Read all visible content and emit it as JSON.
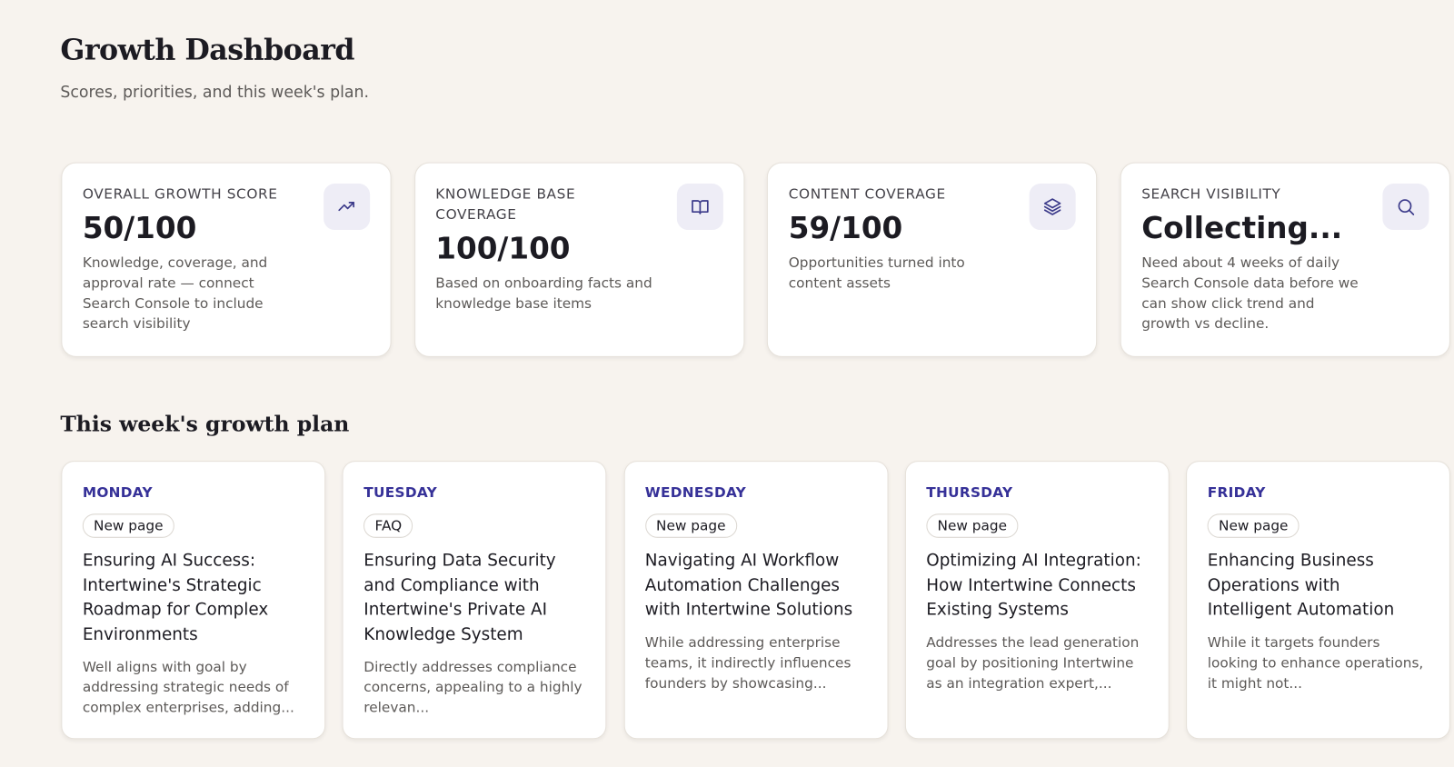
{
  "header": {
    "title": "Growth Dashboard",
    "subtitle": "Scores, priorities, and this week's plan."
  },
  "score_cards": [
    {
      "label": "OVERALL GROWTH SCORE",
      "value": "50/100",
      "description": "Knowledge, coverage, and approval rate — connect Search Console to include search visibility"
    },
    {
      "label": "KNOWLEDGE BASE COVERAGE",
      "value": "100/100",
      "description": "Based on onboarding facts and knowledge base items"
    },
    {
      "label": "CONTENT COVERAGE",
      "value": "59/100",
      "description": "Opportunities turned into content assets"
    },
    {
      "label": "SEARCH VISIBILITY",
      "value": "Collecting...",
      "description": "Need about 4 weeks of daily Search Console data before we can show click trend and growth vs decline."
    }
  ],
  "plan": {
    "title": "This week's growth plan",
    "days": [
      {
        "day": "MONDAY",
        "tag": "New page",
        "title": "Ensuring AI Success: Intertwine's Strategic Roadmap for Complex Environments",
        "description": "Well aligns with goal by addressing strategic needs of complex enterprises, adding..."
      },
      {
        "day": "TUESDAY",
        "tag": "FAQ",
        "title": "Ensuring Data Security and Compliance with Intertwine's Private AI Knowledge System",
        "description": "Directly addresses compliance concerns, appealing to a highly relevan..."
      },
      {
        "day": "WEDNESDAY",
        "tag": "New page",
        "title": "Navigating AI Workflow Automation Challenges with Intertwine Solutions",
        "description": "While addressing enterprise teams, it indirectly influences founders by showcasing..."
      },
      {
        "day": "THURSDAY",
        "tag": "New page",
        "title": "Optimizing AI Integration: How Intertwine Connects Existing Systems",
        "description": "Addresses the lead generation goal by positioning Intertwine as an integration expert,..."
      },
      {
        "day": "FRIDAY",
        "tag": "New page",
        "title": "Enhancing Business Operations with Intelligent Automation",
        "description": "While it targets founders looking to enhance operations, it might not..."
      }
    ]
  }
}
